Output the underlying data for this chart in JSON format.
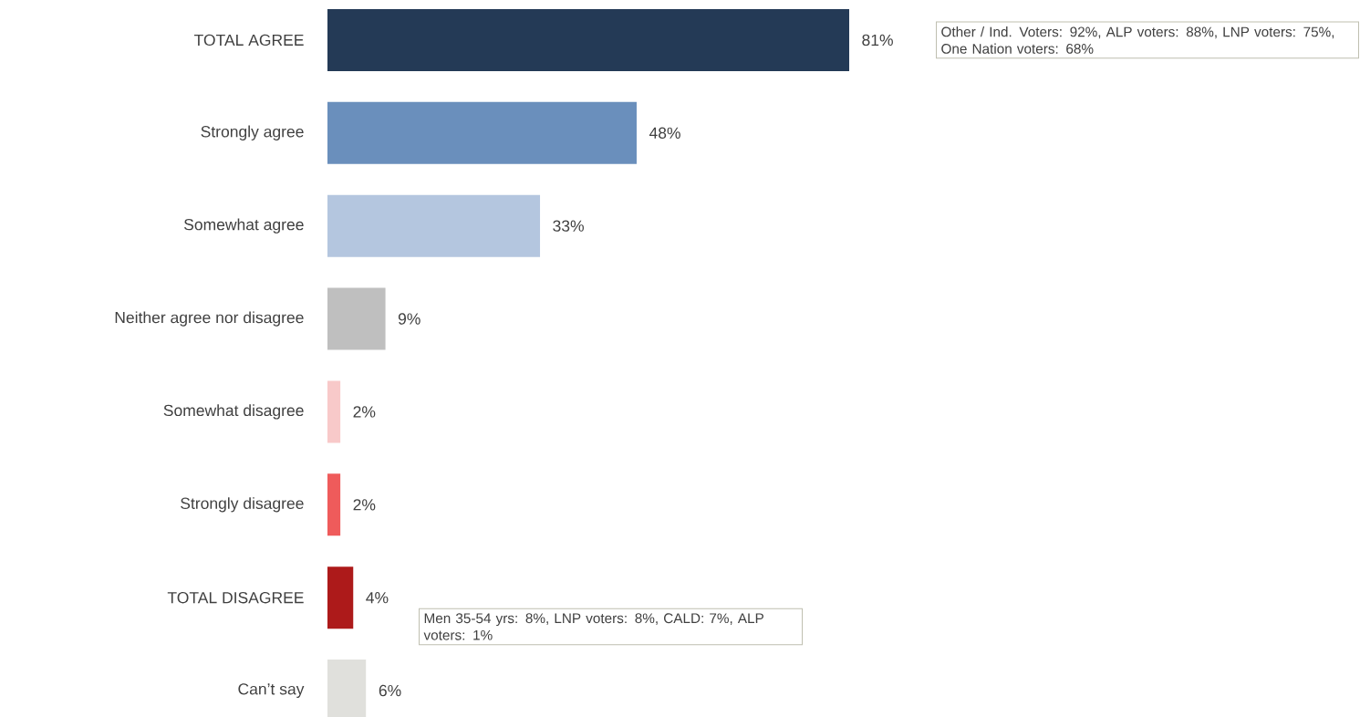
{
  "chart_data": {
    "type": "bar",
    "orientation": "horizontal",
    "categories": [
      "TOTAL AGREE",
      "Strongly agree",
      "Somewhat agree",
      "Neither agree nor disagree",
      "Somewhat disagree",
      "Strongly disagree",
      "TOTAL DISAGREE",
      "Can’t say"
    ],
    "values": [
      81,
      48,
      33,
      9,
      2,
      2,
      4,
      6
    ],
    "colors": [
      "#243a56",
      "#6a8fbc",
      "#b4c6df",
      "#bfbfbf",
      "#f8c9c9",
      "#ef5b5b",
      "#ad1a1a",
      "#e0e0dc"
    ],
    "value_labels": [
      "81%",
      "48%",
      "33%",
      "9%",
      "2%",
      "2%",
      "4%",
      "6%"
    ],
    "annotations": [
      "Other / Ind. Voters: 92%, ALP voters: 88%, LNP voters: 75%, One Nation voters: 68%",
      "Men 35-54 yrs: 8%, LNP voters: 8%, CALD: 7%, ALP voters: 1%"
    ]
  }
}
